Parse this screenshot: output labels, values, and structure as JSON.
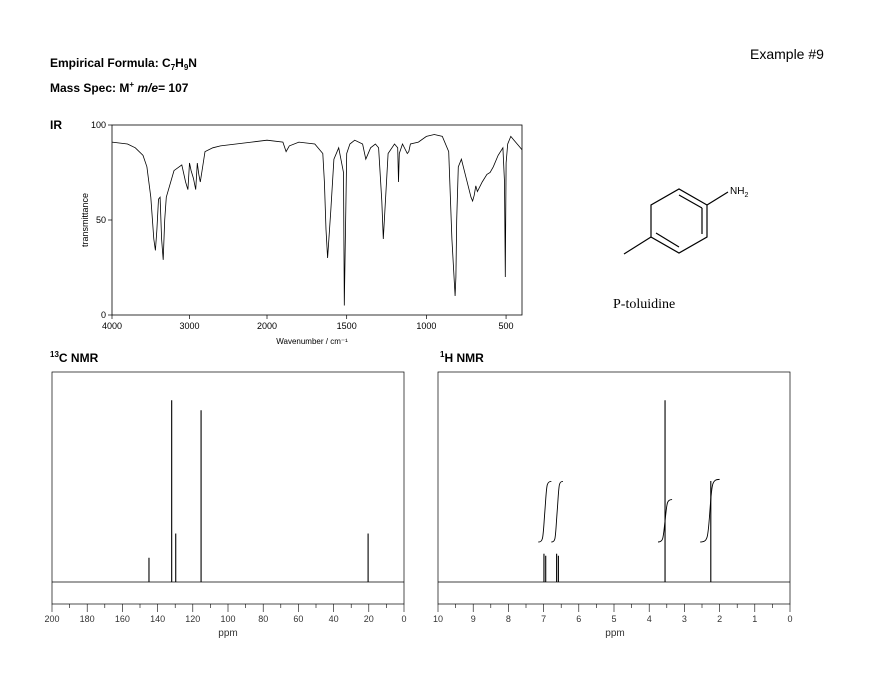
{
  "header": {
    "formula_label": "Empirical Formula: C",
    "formula_sub1": "7",
    "formula_h": "H",
    "formula_sub2": "9",
    "formula_n": "N",
    "mass_label": "Mass Spec: M",
    "mass_sup": "+",
    "mass_me": "m/e",
    "mass_value": "= 107",
    "example": "Example #9"
  },
  "structure": {
    "substituent": "NH",
    "substituent_sub": "2",
    "caption": "P-toluidine"
  },
  "chart_data": [
    {
      "type": "line",
      "title": "IR",
      "xlabel": "Wavenumber / cm⁻¹",
      "ylabel": "transmittance",
      "xlim": [
        4000,
        400
      ],
      "ylim": [
        0,
        100
      ],
      "xticks": [
        4000,
        3000,
        2000,
        1500,
        1000,
        500
      ],
      "yticks": [
        0,
        50,
        100
      ],
      "x": [
        4000,
        3800,
        3700,
        3600,
        3550,
        3500,
        3460,
        3440,
        3420,
        3400,
        3380,
        3360,
        3340,
        3320,
        3300,
        3200,
        3100,
        3050,
        3020,
        3000,
        2980,
        2950,
        2920,
        2900,
        2880,
        2860,
        2800,
        2700,
        2600,
        2400,
        2200,
        2000,
        1900,
        1880,
        1860,
        1800,
        1700,
        1650,
        1640,
        1630,
        1620,
        1600,
        1580,
        1550,
        1520,
        1515,
        1500,
        1480,
        1450,
        1400,
        1380,
        1350,
        1320,
        1300,
        1280,
        1270,
        1260,
        1240,
        1200,
        1180,
        1175,
        1170,
        1150,
        1120,
        1110,
        1100,
        1050,
        1000,
        950,
        900,
        860,
        840,
        820,
        815,
        810,
        800,
        780,
        750,
        720,
        710,
        700,
        690,
        680,
        650,
        620,
        600,
        580,
        550,
        520,
        510,
        505,
        500,
        490,
        470,
        450,
        420,
        400
      ],
      "y": [
        91,
        90,
        88,
        84,
        78,
        62,
        40,
        34,
        45,
        61,
        62,
        40,
        29,
        50,
        62,
        76,
        79,
        70,
        66,
        80,
        76,
        72,
        66,
        80,
        74,
        70,
        86,
        88,
        89,
        90,
        91,
        92,
        91,
        86,
        89,
        91,
        90,
        85,
        70,
        45,
        30,
        55,
        82,
        88,
        75,
        5,
        85,
        90,
        92,
        90,
        82,
        88,
        90,
        88,
        60,
        40,
        55,
        85,
        90,
        88,
        70,
        85,
        90,
        85,
        86,
        90,
        91,
        94,
        95,
        94,
        86,
        40,
        10,
        20,
        50,
        78,
        82,
        72,
        62,
        60,
        63,
        68,
        65,
        70,
        74,
        75,
        78,
        84,
        88,
        70,
        20,
        80,
        90,
        94,
        92,
        89,
        87
      ]
    },
    {
      "type": "bar",
      "title": "13C NMR",
      "xlabel": "ppm",
      "xlim": [
        200,
        0
      ],
      "xticks": [
        200,
        180,
        160,
        140,
        120,
        100,
        80,
        60,
        40,
        20,
        0
      ],
      "ylim": [
        0,
        1
      ],
      "x": [
        144.9,
        132.0,
        129.7,
        115.3,
        20.4
      ],
      "values": [
        0.12,
        0.9,
        0.24,
        0.85,
        0.24
      ]
    },
    {
      "type": "bar",
      "title": "1H NMR",
      "xlabel": "ppm",
      "xlim": [
        10,
        0
      ],
      "xticks": [
        10,
        9,
        8,
        7,
        6,
        5,
        4,
        3,
        2,
        1,
        0
      ],
      "ylim": [
        0,
        1
      ],
      "x": [
        6.99,
        6.94,
        6.63,
        6.58,
        3.55,
        2.25
      ],
      "values": [
        0.14,
        0.13,
        0.14,
        0.13,
        0.9,
        0.5
      ],
      "integrals": [
        {
          "from": 7.15,
          "to": 6.78,
          "height": 0.3
        },
        {
          "from": 6.78,
          "to": 6.45,
          "height": 0.3
        },
        {
          "from": 3.75,
          "to": 3.35,
          "height": 0.21
        },
        {
          "from": 2.55,
          "to": 2.0,
          "height": 0.31
        }
      ]
    }
  ]
}
